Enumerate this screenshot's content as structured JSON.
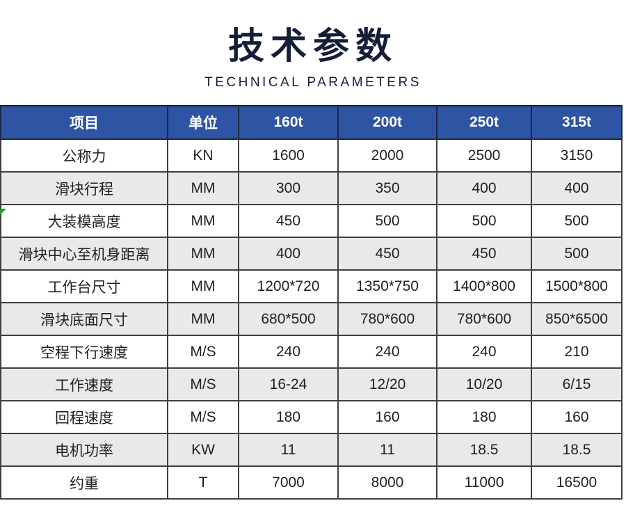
{
  "header": {
    "title": "技术参数",
    "subtitle": "TECHNICAL PARAMETERS"
  },
  "table": {
    "columns": [
      "项目",
      "单位",
      "160t",
      "200t",
      "250t",
      "315t"
    ],
    "rows": [
      {
        "item": "公称力",
        "unit": "KN",
        "values": [
          "1600",
          "2000",
          "2500",
          "3150"
        ]
      },
      {
        "item": "滑块行程",
        "unit": "MM",
        "values": [
          "300",
          "350",
          "400",
          "400"
        ]
      },
      {
        "item": "大装模高度",
        "unit": "MM",
        "values": [
          "450",
          "500",
          "500",
          "500"
        ]
      },
      {
        "item": "滑块中心至机身距离",
        "unit": "MM",
        "values": [
          "400",
          "450",
          "450",
          "500"
        ]
      },
      {
        "item": "工作台尺寸",
        "unit": "MM",
        "values": [
          "1200*720",
          "1350*750",
          "1400*800",
          "1500*800"
        ]
      },
      {
        "item": "滑块底面尺寸",
        "unit": "MM",
        "values": [
          "680*500",
          "780*600",
          "780*600",
          "850*6500"
        ]
      },
      {
        "item": "空程下行速度",
        "unit": "M/S",
        "values": [
          "240",
          "240",
          "240",
          "210"
        ]
      },
      {
        "item": "工作速度",
        "unit": "M/S",
        "values": [
          "16-24",
          "12/20",
          "10/20",
          "6/15"
        ]
      },
      {
        "item": "回程速度",
        "unit": "M/S",
        "values": [
          "180",
          "160",
          "180",
          "160"
        ]
      },
      {
        "item": "电机功率",
        "unit": "KW",
        "values": [
          "11",
          "11",
          "18.5",
          "18.5"
        ]
      },
      {
        "item": "约重",
        "unit": "T",
        "values": [
          "7000",
          "8000",
          "11000",
          "16500"
        ]
      }
    ]
  },
  "colors": {
    "header_bg": "#2e54a4",
    "header_text": "#ffffff",
    "title_color": "#141e38",
    "stripe_bg": "#e9e9e9",
    "border_color": "#3f3f3f",
    "marker_green": "#1fa21f"
  }
}
